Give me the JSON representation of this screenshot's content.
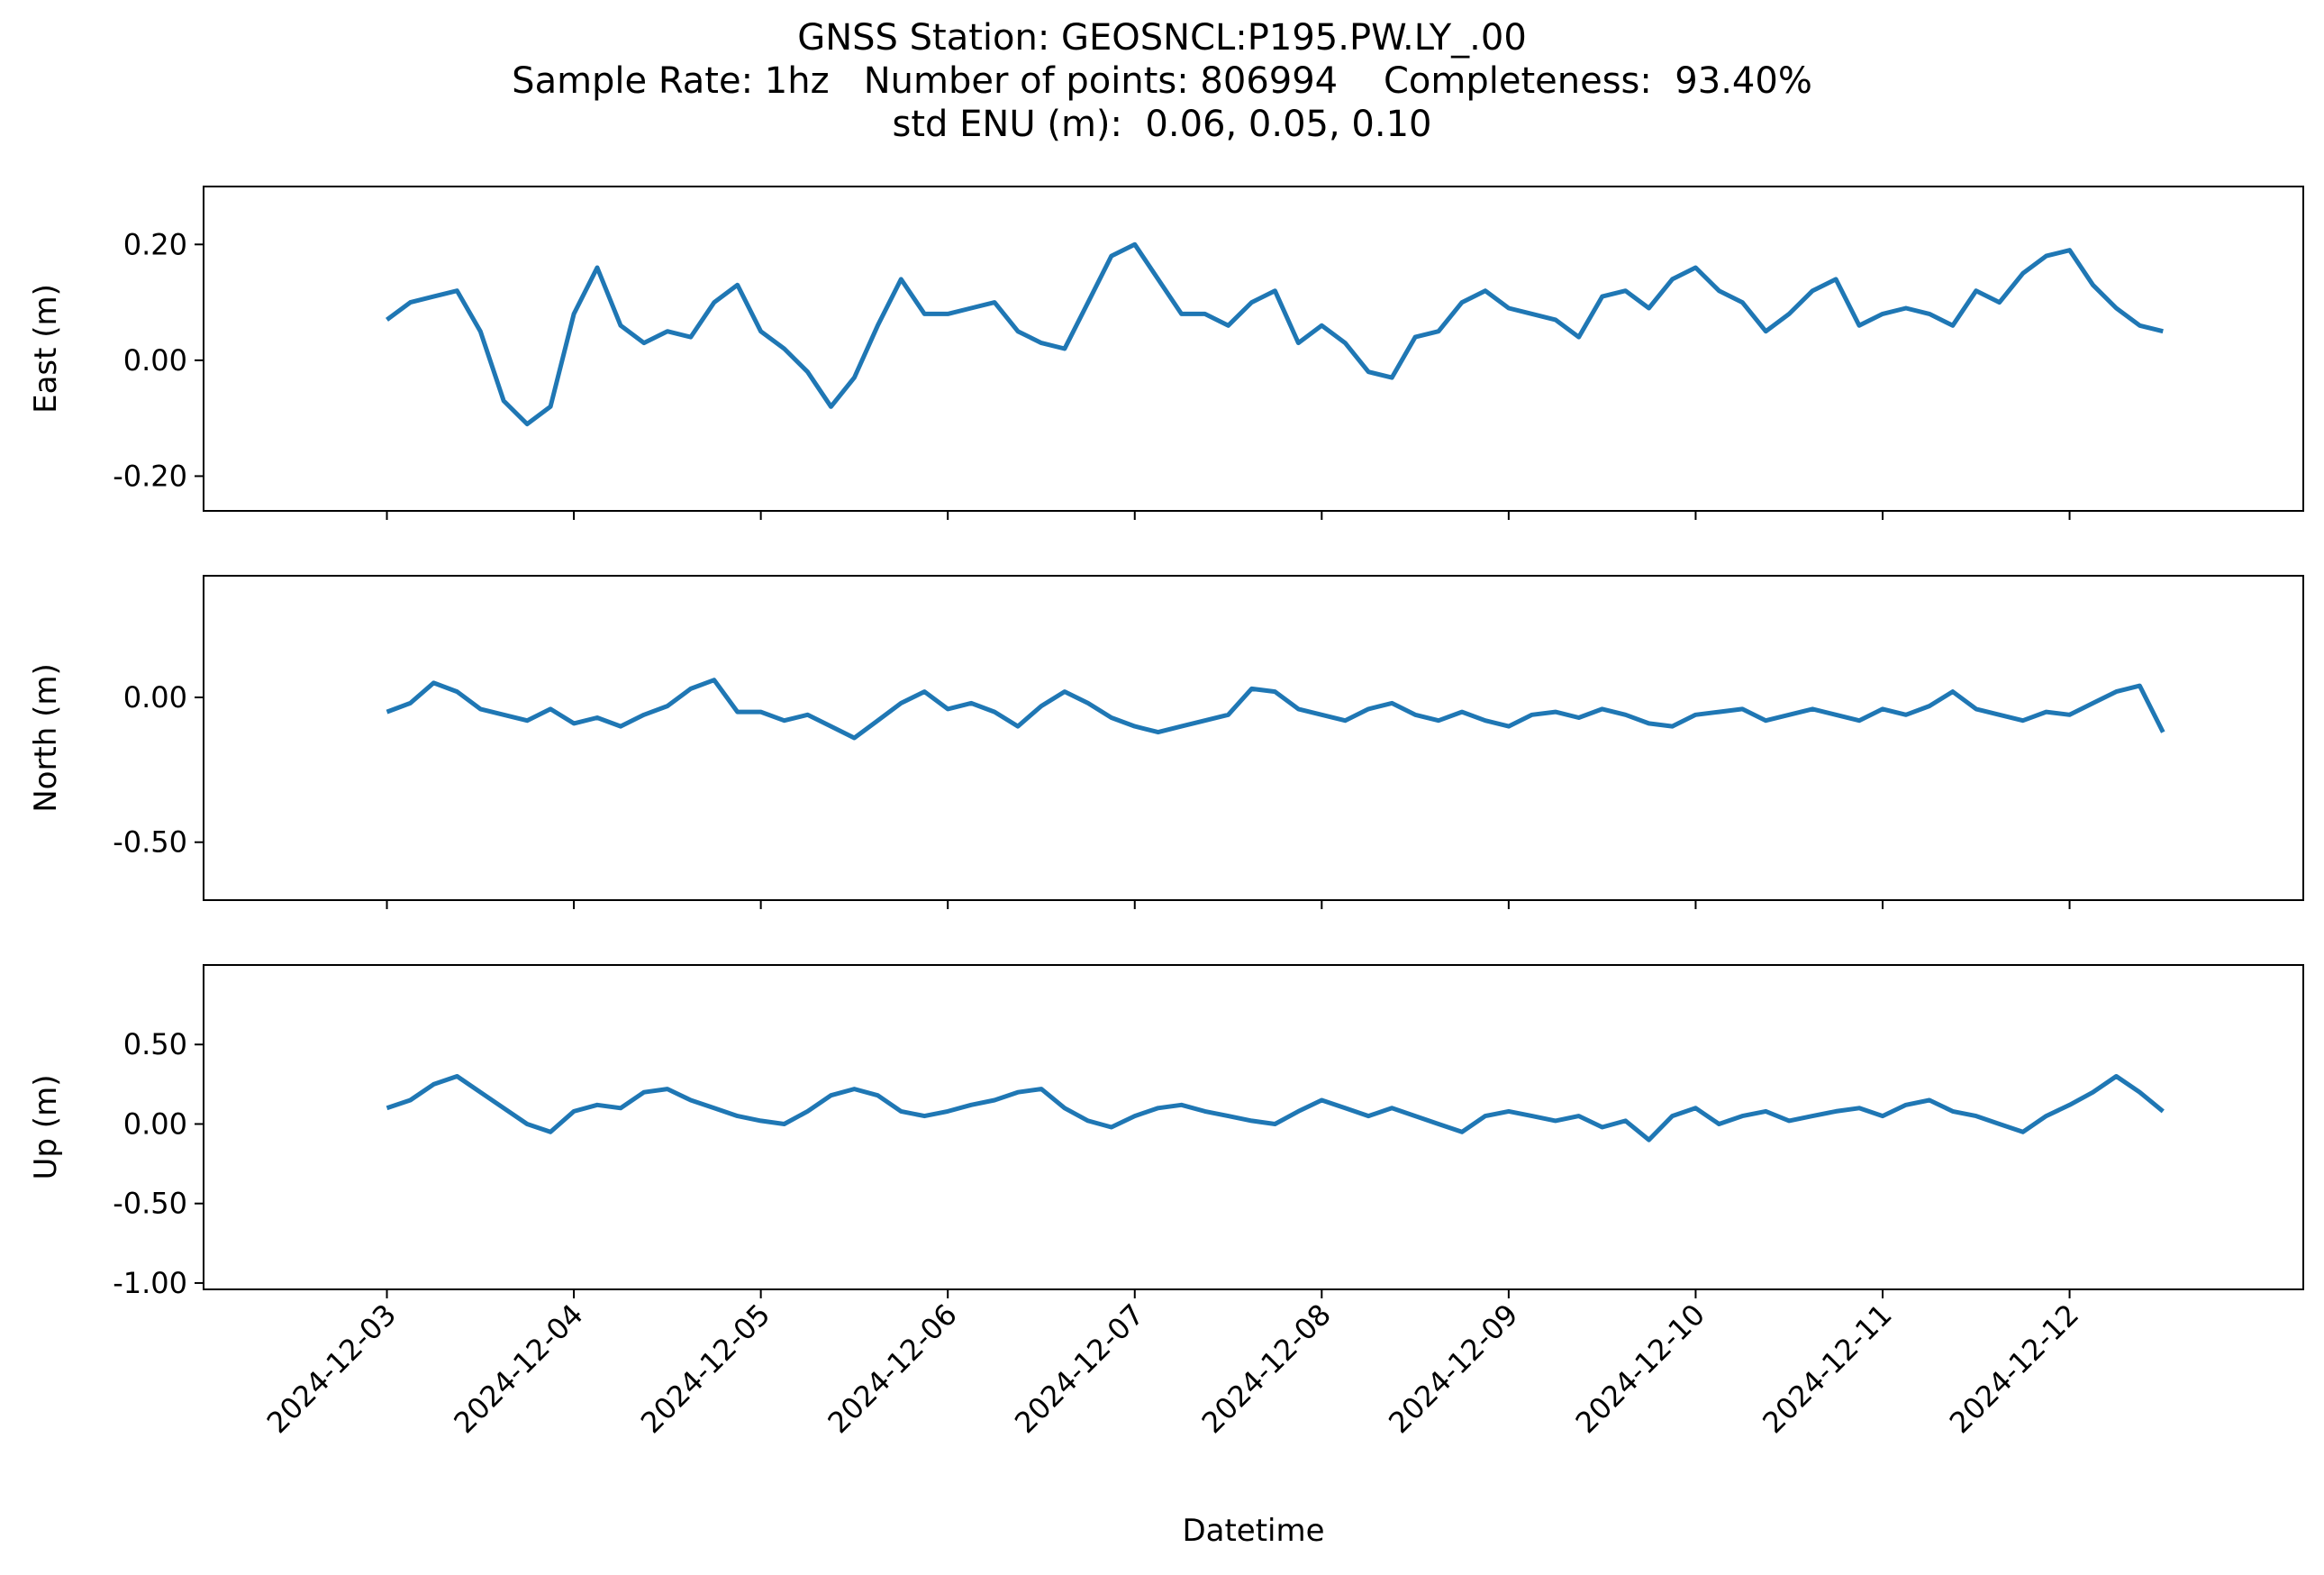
{
  "figure": {
    "title_lines": [
      "GNSS Station: GEOSNCL:P195.PW.LY_.00",
      "Sample Rate: 1hz   Number of points: 806994    Completeness:  93.40%",
      "std ENU (m):  0.06, 0.05, 0.10"
    ],
    "line_color": "#1f77b4"
  },
  "chart_data": [
    {
      "type": "line",
      "panel": "east",
      "ylabel": "East (m)",
      "xlim": [
        "2024-12-02T00:28",
        "2024-12-13T06:00"
      ],
      "ylim": [
        -0.26,
        0.3
      ],
      "yticks": [
        -0.2,
        0.0,
        0.2
      ],
      "ytick_labels": [
        "-0.20",
        "0.00",
        "0.20"
      ],
      "series": [
        {
          "x": [
            "2024-12-03T00:00",
            "2024-12-03T03:00",
            "2024-12-03T06:00",
            "2024-12-03T09:00",
            "2024-12-03T12:00",
            "2024-12-03T15:00",
            "2024-12-03T18:00",
            "2024-12-03T21:00",
            "2024-12-04T00:00",
            "2024-12-04T03:00",
            "2024-12-04T06:00",
            "2024-12-04T09:00",
            "2024-12-04T12:00",
            "2024-12-04T15:00",
            "2024-12-04T18:00",
            "2024-12-04T21:00",
            "2024-12-05T00:00",
            "2024-12-05T03:00",
            "2024-12-05T06:00",
            "2024-12-05T09:00",
            "2024-12-05T12:00",
            "2024-12-05T15:00",
            "2024-12-05T18:00",
            "2024-12-05T21:00",
            "2024-12-06T00:00",
            "2024-12-06T03:00",
            "2024-12-06T06:00",
            "2024-12-06T09:00",
            "2024-12-06T12:00",
            "2024-12-06T15:00",
            "2024-12-06T18:00",
            "2024-12-06T21:00",
            "2024-12-07T00:00",
            "2024-12-07T03:00",
            "2024-12-07T06:00",
            "2024-12-07T09:00",
            "2024-12-07T12:00",
            "2024-12-07T15:00",
            "2024-12-07T18:00",
            "2024-12-07T21:00",
            "2024-12-08T00:00",
            "2024-12-08T03:00",
            "2024-12-08T06:00",
            "2024-12-08T09:00",
            "2024-12-08T12:00",
            "2024-12-08T15:00",
            "2024-12-08T18:00",
            "2024-12-08T21:00",
            "2024-12-09T00:00",
            "2024-12-09T03:00",
            "2024-12-09T06:00",
            "2024-12-09T09:00",
            "2024-12-09T12:00",
            "2024-12-09T15:00",
            "2024-12-09T18:00",
            "2024-12-09T21:00",
            "2024-12-10T00:00",
            "2024-12-10T03:00",
            "2024-12-10T06:00",
            "2024-12-10T09:00",
            "2024-12-10T12:00",
            "2024-12-10T15:00",
            "2024-12-10T18:00",
            "2024-12-10T21:00",
            "2024-12-11T00:00",
            "2024-12-11T03:00",
            "2024-12-11T06:00",
            "2024-12-11T09:00",
            "2024-12-11T12:00",
            "2024-12-11T15:00",
            "2024-12-11T18:00",
            "2024-12-11T21:00",
            "2024-12-12T00:00",
            "2024-12-12T03:00",
            "2024-12-12T06:00",
            "2024-12-12T09:00",
            "2024-12-12T12:00"
          ],
          "y": [
            0.07,
            0.1,
            0.11,
            0.12,
            0.05,
            -0.07,
            -0.11,
            -0.08,
            0.08,
            0.16,
            0.06,
            0.03,
            0.05,
            0.04,
            0.1,
            0.13,
            0.05,
            0.02,
            -0.02,
            -0.08,
            -0.03,
            0.06,
            0.14,
            0.08,
            0.08,
            0.09,
            0.1,
            0.05,
            0.03,
            0.02,
            0.1,
            0.18,
            0.2,
            0.14,
            0.08,
            0.08,
            0.06,
            0.1,
            0.12,
            0.03,
            0.06,
            0.03,
            -0.02,
            -0.03,
            0.04,
            0.05,
            0.1,
            0.12,
            0.09,
            0.08,
            0.07,
            0.04,
            0.11,
            0.12,
            0.09,
            0.14,
            0.16,
            0.12,
            0.1,
            0.05,
            0.08,
            0.12,
            0.14,
            0.06,
            0.08,
            0.09,
            0.08,
            0.06,
            0.12,
            0.1,
            0.15,
            0.18,
            0.19,
            0.13,
            0.09,
            0.06,
            0.05
          ]
        }
      ]
    },
    {
      "type": "line",
      "panel": "north",
      "ylabel": "North (m)",
      "xlim": [
        "2024-12-02T00:28",
        "2024-12-13T06:00"
      ],
      "ylim": [
        -0.7,
        0.42
      ],
      "yticks": [
        -0.5,
        0.0
      ],
      "ytick_labels": [
        "-0.50",
        "0.00"
      ],
      "series": [
        {
          "x": [
            "2024-12-03T00:00",
            "2024-12-03T03:00",
            "2024-12-03T06:00",
            "2024-12-03T09:00",
            "2024-12-03T12:00",
            "2024-12-03T15:00",
            "2024-12-03T18:00",
            "2024-12-03T21:00",
            "2024-12-04T00:00",
            "2024-12-04T03:00",
            "2024-12-04T06:00",
            "2024-12-04T09:00",
            "2024-12-04T12:00",
            "2024-12-04T15:00",
            "2024-12-04T18:00",
            "2024-12-04T21:00",
            "2024-12-05T00:00",
            "2024-12-05T03:00",
            "2024-12-05T06:00",
            "2024-12-05T09:00",
            "2024-12-05T12:00",
            "2024-12-05T15:00",
            "2024-12-05T18:00",
            "2024-12-05T21:00",
            "2024-12-06T00:00",
            "2024-12-06T03:00",
            "2024-12-06T06:00",
            "2024-12-06T09:00",
            "2024-12-06T12:00",
            "2024-12-06T15:00",
            "2024-12-06T18:00",
            "2024-12-06T21:00",
            "2024-12-07T00:00",
            "2024-12-07T03:00",
            "2024-12-07T06:00",
            "2024-12-07T09:00",
            "2024-12-07T12:00",
            "2024-12-07T15:00",
            "2024-12-07T18:00",
            "2024-12-07T21:00",
            "2024-12-08T00:00",
            "2024-12-08T03:00",
            "2024-12-08T06:00",
            "2024-12-08T09:00",
            "2024-12-08T12:00",
            "2024-12-08T15:00",
            "2024-12-08T18:00",
            "2024-12-08T21:00",
            "2024-12-09T00:00",
            "2024-12-09T03:00",
            "2024-12-09T06:00",
            "2024-12-09T09:00",
            "2024-12-09T12:00",
            "2024-12-09T15:00",
            "2024-12-09T18:00",
            "2024-12-09T21:00",
            "2024-12-10T00:00",
            "2024-12-10T03:00",
            "2024-12-10T06:00",
            "2024-12-10T09:00",
            "2024-12-10T12:00",
            "2024-12-10T15:00",
            "2024-12-10T18:00",
            "2024-12-10T21:00",
            "2024-12-11T00:00",
            "2024-12-11T03:00",
            "2024-12-11T06:00",
            "2024-12-11T09:00",
            "2024-12-11T12:00",
            "2024-12-11T15:00",
            "2024-12-11T18:00",
            "2024-12-11T21:00",
            "2024-12-12T00:00",
            "2024-12-12T03:00",
            "2024-12-12T06:00",
            "2024-12-12T09:00",
            "2024-12-12T12:00"
          ],
          "y": [
            -0.05,
            -0.02,
            0.05,
            0.02,
            -0.04,
            -0.06,
            -0.08,
            -0.04,
            -0.09,
            -0.07,
            -0.1,
            -0.06,
            -0.03,
            0.03,
            0.06,
            -0.05,
            -0.05,
            -0.08,
            -0.06,
            -0.1,
            -0.14,
            -0.08,
            -0.02,
            0.02,
            -0.04,
            -0.02,
            -0.05,
            -0.1,
            -0.03,
            0.02,
            -0.02,
            -0.07,
            -0.1,
            -0.12,
            -0.1,
            -0.08,
            -0.06,
            0.03,
            0.02,
            -0.04,
            -0.06,
            -0.08,
            -0.04,
            -0.02,
            -0.06,
            -0.08,
            -0.05,
            -0.08,
            -0.1,
            -0.06,
            -0.05,
            -0.07,
            -0.04,
            -0.06,
            -0.09,
            -0.1,
            -0.06,
            -0.05,
            -0.04,
            -0.08,
            -0.06,
            -0.04,
            -0.06,
            -0.08,
            -0.04,
            -0.06,
            -0.03,
            0.02,
            -0.04,
            -0.06,
            -0.08,
            -0.05,
            -0.06,
            -0.02,
            0.02,
            0.04,
            -0.12
          ]
        }
      ]
    },
    {
      "type": "line",
      "panel": "up",
      "ylabel": "Up (m)",
      "xlabel": "Datetime",
      "xlim": [
        "2024-12-02T00:28",
        "2024-12-13T06:00"
      ],
      "ylim": [
        -1.04,
        1.0
      ],
      "yticks": [
        -1.0,
        -0.5,
        0.0,
        0.5
      ],
      "ytick_labels": [
        "-1.00",
        "-0.50",
        "0.00",
        "0.50"
      ],
      "xticks": [
        "2024-12-03",
        "2024-12-04",
        "2024-12-05",
        "2024-12-06",
        "2024-12-07",
        "2024-12-08",
        "2024-12-09",
        "2024-12-10",
        "2024-12-11",
        "2024-12-12"
      ],
      "series": [
        {
          "x": [
            "2024-12-03T00:00",
            "2024-12-03T03:00",
            "2024-12-03T06:00",
            "2024-12-03T09:00",
            "2024-12-03T12:00",
            "2024-12-03T15:00",
            "2024-12-03T18:00",
            "2024-12-03T21:00",
            "2024-12-04T00:00",
            "2024-12-04T03:00",
            "2024-12-04T06:00",
            "2024-12-04T09:00",
            "2024-12-04T12:00",
            "2024-12-04T15:00",
            "2024-12-04T18:00",
            "2024-12-04T21:00",
            "2024-12-05T00:00",
            "2024-12-05T03:00",
            "2024-12-05T06:00",
            "2024-12-05T09:00",
            "2024-12-05T12:00",
            "2024-12-05T15:00",
            "2024-12-05T18:00",
            "2024-12-05T21:00",
            "2024-12-06T00:00",
            "2024-12-06T03:00",
            "2024-12-06T06:00",
            "2024-12-06T09:00",
            "2024-12-06T12:00",
            "2024-12-06T15:00",
            "2024-12-06T18:00",
            "2024-12-06T21:00",
            "2024-12-07T00:00",
            "2024-12-07T03:00",
            "2024-12-07T06:00",
            "2024-12-07T09:00",
            "2024-12-07T12:00",
            "2024-12-07T15:00",
            "2024-12-07T18:00",
            "2024-12-07T21:00",
            "2024-12-08T00:00",
            "2024-12-08T03:00",
            "2024-12-08T06:00",
            "2024-12-08T09:00",
            "2024-12-08T12:00",
            "2024-12-08T15:00",
            "2024-12-08T18:00",
            "2024-12-08T21:00",
            "2024-12-09T00:00",
            "2024-12-09T03:00",
            "2024-12-09T06:00",
            "2024-12-09T09:00",
            "2024-12-09T12:00",
            "2024-12-09T15:00",
            "2024-12-09T18:00",
            "2024-12-09T21:00",
            "2024-12-10T00:00",
            "2024-12-10T03:00",
            "2024-12-10T06:00",
            "2024-12-10T09:00",
            "2024-12-10T12:00",
            "2024-12-10T15:00",
            "2024-12-10T18:00",
            "2024-12-10T21:00",
            "2024-12-11T00:00",
            "2024-12-11T03:00",
            "2024-12-11T06:00",
            "2024-12-11T09:00",
            "2024-12-11T12:00",
            "2024-12-11T15:00",
            "2024-12-11T18:00",
            "2024-12-11T21:00",
            "2024-12-12T00:00",
            "2024-12-12T03:00",
            "2024-12-12T06:00",
            "2024-12-12T09:00",
            "2024-12-12T12:00"
          ],
          "y": [
            0.1,
            0.15,
            0.25,
            0.3,
            0.2,
            0.1,
            0.0,
            -0.05,
            0.08,
            0.12,
            0.1,
            0.2,
            0.22,
            0.15,
            0.1,
            0.05,
            0.02,
            0.0,
            0.08,
            0.18,
            0.22,
            0.18,
            0.08,
            0.05,
            0.08,
            0.12,
            0.15,
            0.2,
            0.22,
            0.1,
            0.02,
            -0.02,
            0.05,
            0.1,
            0.12,
            0.08,
            0.05,
            0.02,
            0.0,
            0.08,
            0.15,
            0.1,
            0.05,
            0.1,
            0.05,
            0.0,
            -0.05,
            0.05,
            0.08,
            0.05,
            0.02,
            0.05,
            -0.02,
            0.02,
            -0.1,
            0.05,
            0.1,
            0.0,
            0.05,
            0.08,
            0.02,
            0.05,
            0.08,
            0.1,
            0.05,
            0.12,
            0.15,
            0.08,
            0.05,
            0.0,
            -0.05,
            0.05,
            0.12,
            0.2,
            0.3,
            0.2,
            0.08
          ]
        }
      ]
    }
  ]
}
